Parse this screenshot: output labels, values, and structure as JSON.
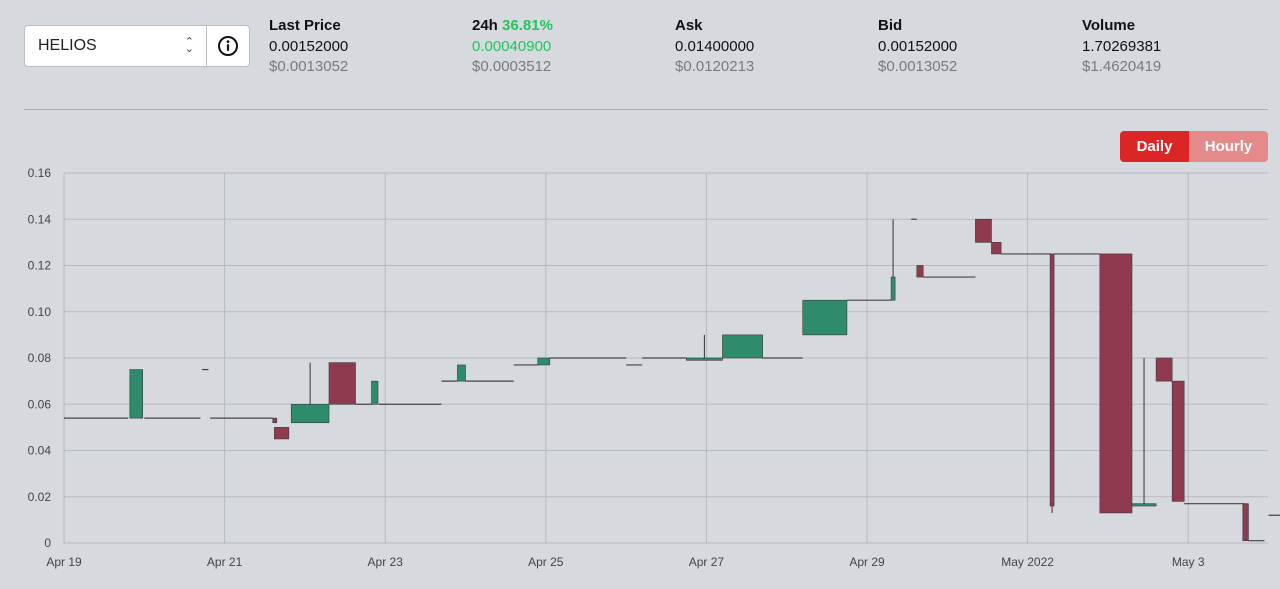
{
  "selector": {
    "value": "HELIOS",
    "info_icon": "info-circle-icon",
    "chevron_icon": "updown-chevron-icon"
  },
  "stats": [
    {
      "label": "Last Price",
      "value": "0.00152000",
      "usd": "$0.0013052"
    },
    {
      "label": "24h",
      "change": "36.81%",
      "value": "0.00040900",
      "usd": "$0.0003512"
    },
    {
      "label": "Ask",
      "value": "0.01400000",
      "usd": "$0.0120213"
    },
    {
      "label": "Bid",
      "value": "0.00152000",
      "usd": "$0.0013052"
    },
    {
      "label": "Volume",
      "value": "1.70269381",
      "usd": "$1.4620419"
    }
  ],
  "toggle": {
    "daily": "Daily",
    "hourly": "Hourly"
  },
  "colors": {
    "up": "#2e8b6b",
    "down": "#8f3a4f",
    "accent": "#dc2626",
    "positive_text": "#22c55e"
  },
  "chart_data": {
    "type": "candlestick",
    "title": "",
    "xlabel": "",
    "ylabel": "",
    "ylim": [
      0,
      0.16
    ],
    "yticks": [
      "0",
      "0.02",
      "0.04",
      "0.06",
      "0.08",
      "0.10",
      "0.12",
      "0.14",
      "0.16"
    ],
    "xlim": [
      0,
      15
    ],
    "xticks": [
      {
        "x": 0,
        "label": "Apr 19"
      },
      {
        "x": 2,
        "label": "Apr 21"
      },
      {
        "x": 4,
        "label": "Apr 23"
      },
      {
        "x": 6,
        "label": "Apr 25"
      },
      {
        "x": 8,
        "label": "Apr 27"
      },
      {
        "x": 10,
        "label": "Apr 29"
      },
      {
        "x": 12,
        "label": "May 2022"
      },
      {
        "x": 14,
        "label": "May 3"
      }
    ],
    "grid": true,
    "candles": [
      {
        "t0": 0.0,
        "t1": 0.8,
        "open": 0.054,
        "close": 0.054,
        "high": 0.054,
        "low": 0.054
      },
      {
        "t0": 0.82,
        "t1": 0.98,
        "open": 0.054,
        "close": 0.075,
        "high": 0.075,
        "low": 0.054
      },
      {
        "t0": 1.0,
        "t1": 1.7,
        "open": 0.054,
        "close": 0.054,
        "high": 0.054,
        "low": 0.054
      },
      {
        "t0": 1.72,
        "t1": 1.8,
        "open": 0.075,
        "close": 0.075,
        "high": 0.075,
        "low": 0.075
      },
      {
        "t0": 1.82,
        "t1": 2.6,
        "open": 0.054,
        "close": 0.054,
        "high": 0.054,
        "low": 0.054
      },
      {
        "t0": 2.6,
        "t1": 2.65,
        "open": 0.054,
        "close": 0.052,
        "high": 0.054,
        "low": 0.052
      },
      {
        "t0": 2.62,
        "t1": 2.8,
        "open": 0.05,
        "close": 0.045,
        "high": 0.05,
        "low": 0.045
      },
      {
        "t0": 2.83,
        "t1": 3.3,
        "open": 0.052,
        "close": 0.06,
        "high": 0.078,
        "low": 0.052
      },
      {
        "t0": 3.3,
        "t1": 3.63,
        "open": 0.078,
        "close": 0.06,
        "high": 0.078,
        "low": 0.06
      },
      {
        "t0": 3.63,
        "t1": 3.83,
        "open": 0.06,
        "close": 0.06,
        "high": 0.06,
        "low": 0.06
      },
      {
        "t0": 3.83,
        "t1": 3.91,
        "open": 0.06,
        "close": 0.07,
        "high": 0.07,
        "low": 0.06
      },
      {
        "t0": 3.92,
        "t1": 4.7,
        "open": 0.06,
        "close": 0.06,
        "high": 0.06,
        "low": 0.06
      },
      {
        "t0": 4.7,
        "t1": 4.9,
        "open": 0.07,
        "close": 0.07,
        "high": 0.07,
        "low": 0.07
      },
      {
        "t0": 4.9,
        "t1": 5.0,
        "open": 0.07,
        "close": 0.077,
        "high": 0.077,
        "low": 0.07
      },
      {
        "t0": 5.0,
        "t1": 5.6,
        "open": 0.07,
        "close": 0.07,
        "high": 0.07,
        "low": 0.07
      },
      {
        "t0": 5.6,
        "t1": 5.9,
        "open": 0.077,
        "close": 0.077,
        "high": 0.077,
        "low": 0.077
      },
      {
        "t0": 5.9,
        "t1": 6.05,
        "open": 0.077,
        "close": 0.08,
        "high": 0.08,
        "low": 0.077
      },
      {
        "t0": 6.05,
        "t1": 7.0,
        "open": 0.08,
        "close": 0.08,
        "high": 0.08,
        "low": 0.08
      },
      {
        "t0": 7.0,
        "t1": 7.2,
        "open": 0.077,
        "close": 0.077,
        "high": 0.077,
        "low": 0.077
      },
      {
        "t0": 7.2,
        "t1": 7.75,
        "open": 0.08,
        "close": 0.08,
        "high": 0.08,
        "low": 0.08
      },
      {
        "t0": 7.75,
        "t1": 8.2,
        "open": 0.079,
        "close": 0.08,
        "high": 0.09,
        "low": 0.079
      },
      {
        "t0": 8.2,
        "t1": 8.7,
        "open": 0.08,
        "close": 0.09,
        "high": 0.09,
        "low": 0.08
      },
      {
        "t0": 8.7,
        "t1": 9.2,
        "open": 0.08,
        "close": 0.08,
        "high": 0.08,
        "low": 0.08
      },
      {
        "t0": 9.2,
        "t1": 9.75,
        "open": 0.09,
        "close": 0.105,
        "high": 0.105,
        "low": 0.09
      },
      {
        "t0": 9.75,
        "t1": 10.3,
        "open": 0.105,
        "close": 0.105,
        "high": 0.105,
        "low": 0.105
      },
      {
        "t0": 10.3,
        "t1": 10.35,
        "open": 0.105,
        "close": 0.115,
        "high": 0.14,
        "low": 0.105
      },
      {
        "t0": 10.55,
        "t1": 10.62,
        "open": 0.14,
        "close": 0.14,
        "high": 0.14,
        "low": 0.14
      },
      {
        "t0": 10.62,
        "t1": 10.7,
        "open": 0.12,
        "close": 0.115,
        "high": 0.12,
        "low": 0.115
      },
      {
        "t0": 10.7,
        "t1": 11.35,
        "open": 0.115,
        "close": 0.115,
        "high": 0.115,
        "low": 0.115
      },
      {
        "t0": 11.35,
        "t1": 11.55,
        "open": 0.14,
        "close": 0.13,
        "high": 0.14,
        "low": 0.13
      },
      {
        "t0": 11.55,
        "t1": 11.67,
        "open": 0.13,
        "close": 0.125,
        "high": 0.13,
        "low": 0.125
      },
      {
        "t0": 11.67,
        "t1": 12.3,
        "open": 0.125,
        "close": 0.125,
        "high": 0.125,
        "low": 0.125
      },
      {
        "t0": 12.28,
        "t1": 12.33,
        "open": 0.125,
        "close": 0.016,
        "high": 0.125,
        "low": 0.013
      },
      {
        "t0": 12.33,
        "t1": 12.9,
        "open": 0.125,
        "close": 0.125,
        "high": 0.125,
        "low": 0.125
      },
      {
        "t0": 12.9,
        "t1": 13.3,
        "open": 0.125,
        "close": 0.013,
        "high": 0.125,
        "low": 0.013
      },
      {
        "t0": 13.3,
        "t1": 13.6,
        "open": 0.016,
        "close": 0.017,
        "high": 0.08,
        "low": 0.016
      },
      {
        "t0": 13.6,
        "t1": 13.8,
        "open": 0.08,
        "close": 0.07,
        "high": 0.08,
        "low": 0.07
      },
      {
        "t0": 13.8,
        "t1": 13.95,
        "open": 0.07,
        "close": 0.018,
        "high": 0.07,
        "low": 0.018
      },
      {
        "t0": 13.95,
        "t1": 14.7,
        "open": 0.017,
        "close": 0.017,
        "high": 0.017,
        "low": 0.017
      },
      {
        "t0": 14.68,
        "t1": 14.75,
        "open": 0.017,
        "close": 0.001,
        "high": 0.017,
        "low": 0.001
      },
      {
        "t0": 14.75,
        "t1": 14.95,
        "open": 0.001,
        "close": 0.001,
        "high": 0.001,
        "low": 0.001
      },
      {
        "t0": 15.0,
        "t1": 15.35,
        "open": 0.012,
        "close": 0.012,
        "high": 0.012,
        "low": 0.012
      },
      {
        "t0": 15.35,
        "t1": 15.95,
        "open": 0.001,
        "close": 0.001,
        "high": 0.001,
        "low": 0.001
      }
    ]
  }
}
